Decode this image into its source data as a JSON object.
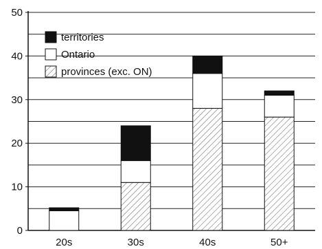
{
  "chart_data": {
    "type": "bar",
    "stacked": true,
    "categories": [
      "20s",
      "30s",
      "40s",
      "50+"
    ],
    "series": [
      {
        "name": "provinces (exc. ON)",
        "values": [
          0,
          11,
          28,
          26
        ],
        "fill": "hatched"
      },
      {
        "name": "Ontario",
        "values": [
          4.5,
          5,
          8,
          5
        ],
        "fill": "#ffffff"
      },
      {
        "name": "territories",
        "values": [
          0.7,
          8,
          4,
          1
        ],
        "fill": "#111111"
      }
    ],
    "legend_order": [
      "territories",
      "Ontario",
      "provinces (exc. ON)"
    ],
    "ylim": [
      0,
      50
    ],
    "y_ticks": [
      "0",
      "10",
      "20",
      "30",
      "40",
      "50"
    ],
    "grid": "horizontal",
    "legend_position": "top-left"
  }
}
